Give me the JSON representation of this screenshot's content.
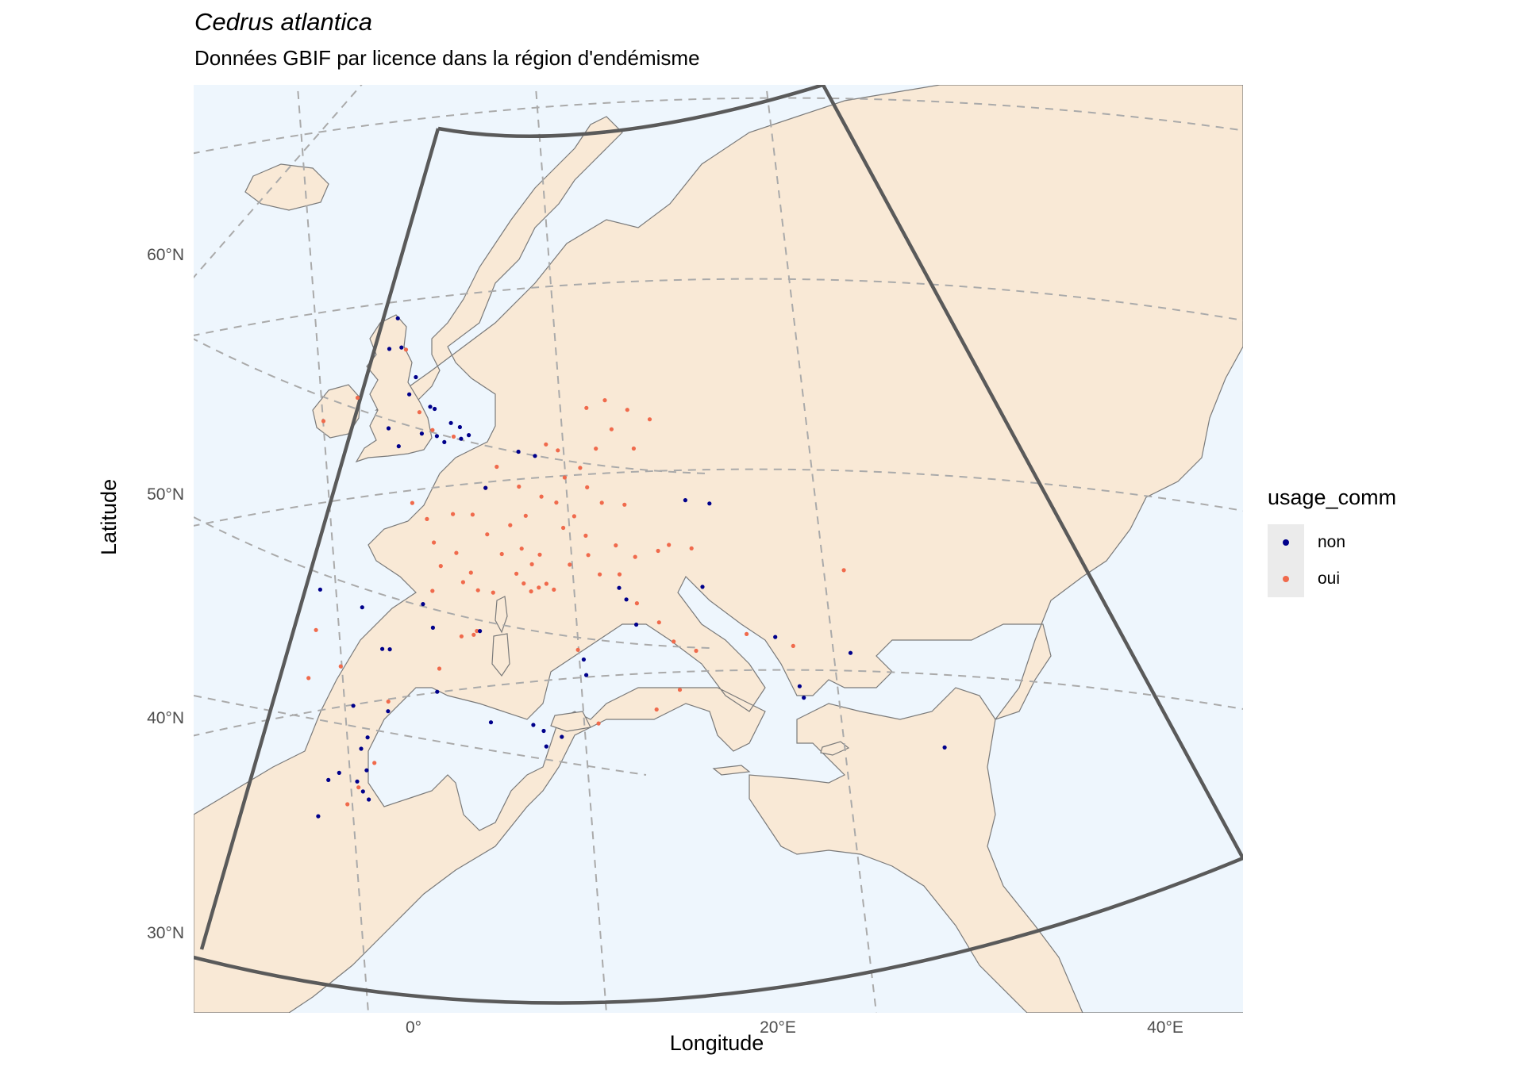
{
  "title": "Cedrus atlantica",
  "subtitle": "Données GBIF par licence dans la région d'endémisme",
  "axes": {
    "xlabel": "Longitude",
    "ylabel": "Latitude",
    "x_ticks": [
      "0°",
      "20°E",
      "40°E"
    ],
    "y_ticks": [
      "60°N",
      "50°N",
      "40°N",
      "30°N"
    ]
  },
  "legend": {
    "title": "usage_comm",
    "items": [
      {
        "label": "non",
        "color": "#00008B"
      },
      {
        "label": "oui",
        "color": "#F06A4C"
      }
    ]
  },
  "colors": {
    "sea": "#EEF6FD",
    "land": "#F9E9D6",
    "border": "#7A7A7A",
    "region_outline": "#5A5A5A",
    "graticule": "#AAAAAA"
  },
  "chart_data": {
    "type": "scatter",
    "projection": "conic",
    "xlim": [
      -12,
      45
    ],
    "ylim": [
      25,
      65
    ],
    "series": [
      {
        "name": "non",
        "color": "#00008B",
        "points": [
          [
            -3.5,
            56
          ],
          [
            -2.5,
            54.5
          ],
          [
            -1.5,
            53
          ],
          [
            0.5,
            52
          ],
          [
            -1,
            51.5
          ],
          [
            0.6,
            51.4
          ],
          [
            1.1,
            51.6
          ],
          [
            -0.5,
            51.2
          ],
          [
            -2,
            51.6
          ],
          [
            -3.5,
            50.9
          ],
          [
            -4.2,
            51.8
          ],
          [
            -2.9,
            53.6
          ],
          [
            -1.2,
            52.9
          ],
          [
            -0.1,
            52.2
          ],
          [
            -3.8,
            57.5
          ],
          [
            -4.3,
            55.9
          ],
          [
            4.4,
            50.8
          ],
          [
            5.5,
            50.6
          ],
          [
            2.3,
            48.9
          ],
          [
            -4.2,
            40.4
          ],
          [
            -3.7,
            40.4
          ],
          [
            -5.6,
            42.5
          ],
          [
            -3.7,
            37.2
          ],
          [
            -0.5,
            38.3
          ],
          [
            2.2,
            41.5
          ],
          [
            -6,
            37.4
          ],
          [
            -8.4,
            43.3
          ],
          [
            -1.6,
            42.8
          ],
          [
            -0.9,
            41.6
          ],
          [
            9.1,
            40.1
          ],
          [
            9.3,
            39.3
          ],
          [
            11.3,
            43.8
          ],
          [
            11.8,
            43.2
          ],
          [
            12.5,
            41.9
          ],
          [
            16.8,
            43.8
          ],
          [
            21.7,
            41.1
          ],
          [
            23.7,
            37.9
          ],
          [
            33.1,
            34.9
          ],
          [
            15.5,
            48.3
          ],
          [
            17.1,
            48.1
          ],
          [
            -5.4,
            35.2
          ],
          [
            -5,
            34.1
          ],
          [
            -6.8,
            33.9
          ],
          [
            -5.6,
            33.5
          ],
          [
            -5.2,
            33
          ],
          [
            -4.8,
            32.6
          ],
          [
            -7.5,
            33.5
          ],
          [
            -8.1,
            31.6
          ],
          [
            -5,
            35.8
          ],
          [
            5.9,
            36.7
          ],
          [
            3.1,
            36.8
          ],
          [
            6.6,
            36.4
          ],
          [
            7.8,
            36.1
          ],
          [
            6.8,
            35.6
          ],
          [
            26.7,
            40.1
          ],
          [
            23.4,
            38.5
          ]
        ]
      },
      {
        "name": "oui",
        "color": "#F06A4C",
        "points": [
          [
            2.3,
            48.9
          ],
          [
            1.5,
            47.5
          ],
          [
            0.2,
            47.5
          ],
          [
            -1.5,
            47.2
          ],
          [
            -2.5,
            48
          ],
          [
            -1,
            46
          ],
          [
            0.5,
            45.5
          ],
          [
            1.5,
            44.5
          ],
          [
            2.5,
            46.5
          ],
          [
            3.5,
            45.5
          ],
          [
            4.5,
            44.5
          ],
          [
            5,
            44
          ],
          [
            5.5,
            43.6
          ],
          [
            6,
            43.8
          ],
          [
            6.5,
            44
          ],
          [
            7,
            43.7
          ],
          [
            5.5,
            45
          ],
          [
            6,
            45.5
          ],
          [
            4.8,
            45.8
          ],
          [
            3,
            43.5
          ],
          [
            2,
            43.6
          ],
          [
            1,
            44
          ],
          [
            -0.5,
            44.8
          ],
          [
            -1,
            43.5
          ],
          [
            4,
            47
          ],
          [
            5,
            47.5
          ],
          [
            6,
            48.5
          ],
          [
            7,
            48.2
          ],
          [
            3,
            50
          ],
          [
            4.5,
            49
          ],
          [
            7.5,
            49.5
          ],
          [
            8.5,
            50
          ],
          [
            9.5,
            51
          ],
          [
            10.5,
            52
          ],
          [
            11.5,
            53
          ],
          [
            13,
            52.5
          ],
          [
            12,
            51
          ],
          [
            9,
            49
          ],
          [
            10,
            48.2
          ],
          [
            11.5,
            48.1
          ],
          [
            8.2,
            47.5
          ],
          [
            7.5,
            46.9
          ],
          [
            9,
            46.5
          ],
          [
            11,
            46
          ],
          [
            9.2,
            45.5
          ],
          [
            8,
            45
          ],
          [
            10,
            44.5
          ],
          [
            11.3,
            44.5
          ],
          [
            12.5,
            43
          ],
          [
            14,
            42
          ],
          [
            15,
            41
          ],
          [
            16.5,
            40.5
          ],
          [
            15.5,
            38.5
          ],
          [
            14,
            37.5
          ],
          [
            12.3,
            45.4
          ],
          [
            13.8,
            45.7
          ],
          [
            14.5,
            46
          ],
          [
            16,
            45.8
          ],
          [
            2,
            41.5
          ],
          [
            1,
            41.2
          ],
          [
            -0.4,
            39.5
          ],
          [
            -3.7,
            37.7
          ],
          [
            -8.6,
            41.2
          ],
          [
            -9,
            38.7
          ],
          [
            -6.9,
            39.4
          ],
          [
            1.8,
            41.3
          ],
          [
            22.9,
            40.6
          ],
          [
            19.8,
            41.3
          ],
          [
            26.1,
            44.4
          ],
          [
            10,
            53.5
          ],
          [
            8.8,
            53.1
          ],
          [
            6.2,
            51.2
          ],
          [
            7,
            50.9
          ],
          [
            -1.3,
            51.8
          ],
          [
            -2.2,
            52.7
          ],
          [
            0.1,
            51.5
          ],
          [
            -6.3,
            53.3
          ],
          [
            -8.5,
            52
          ],
          [
            -3.2,
            55.9
          ],
          [
            8.7,
            40.6
          ],
          [
            -4.5,
            34.5
          ],
          [
            -5.5,
            33.2
          ],
          [
            10.2,
            36.8
          ],
          [
            -6.2,
            32.3
          ]
        ]
      }
    ]
  }
}
